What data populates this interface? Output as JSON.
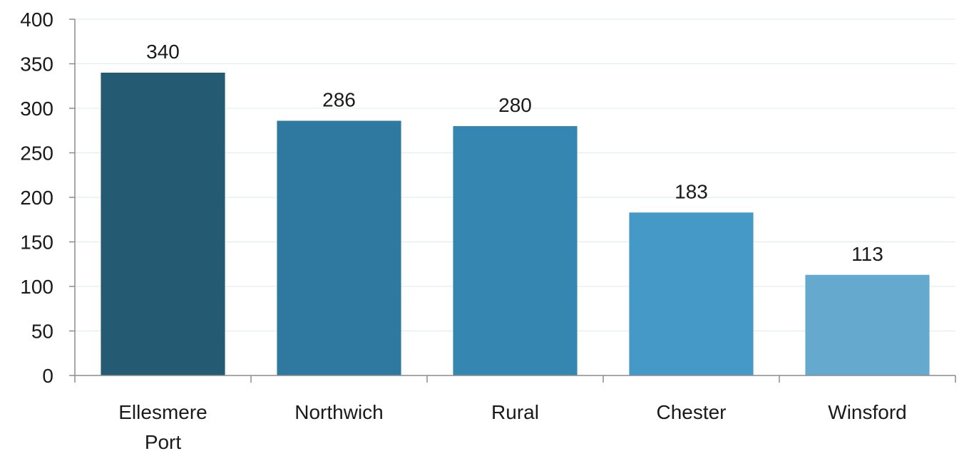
{
  "chart_data": {
    "type": "bar",
    "categories": [
      [
        "Ellesmere",
        "Port"
      ],
      [
        "Northwich"
      ],
      [
        "Rural"
      ],
      [
        "Chester"
      ],
      [
        "Winsford"
      ]
    ],
    "values": [
      340,
      286,
      280,
      183,
      113
    ],
    "colors": [
      "#255a73",
      "#2f789f",
      "#3586b0",
      "#4599c7",
      "#65a9ce"
    ],
    "ylim": [
      0,
      400
    ],
    "yticks": [
      0,
      50,
      100,
      150,
      200,
      250,
      300,
      350,
      400
    ],
    "title": "",
    "xlabel": "",
    "ylabel": "",
    "grid": true,
    "gridColor": "#dfe9ee",
    "axisColor": "#8c8c8c"
  }
}
